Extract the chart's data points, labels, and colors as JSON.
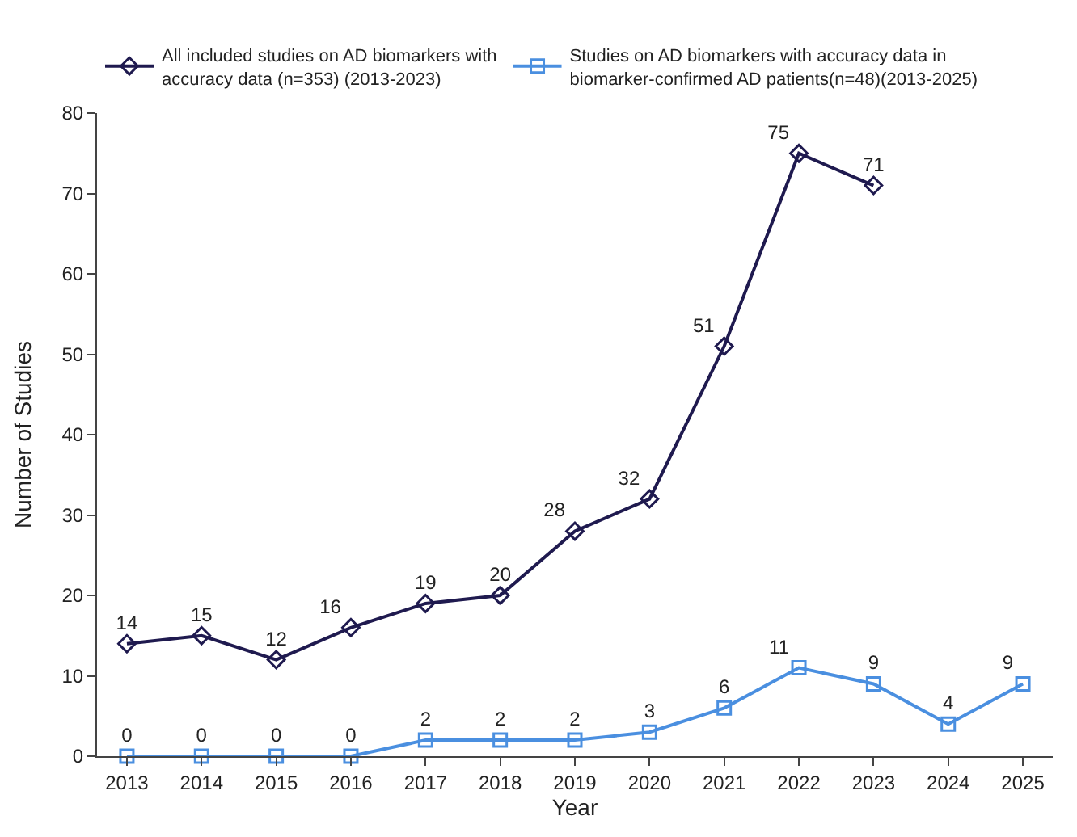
{
  "chart_data": {
    "type": "line",
    "xlabel": "Year",
    "ylabel": "Number of Studies",
    "categories": [
      "2013",
      "2014",
      "2015",
      "2016",
      "2017",
      "2018",
      "2019",
      "2020",
      "2021",
      "2022",
      "2023",
      "2024",
      "2025"
    ],
    "series": [
      {
        "name": "All included studies on AD biomarkers with accuracy data (n=353) (2013-2023)",
        "color": "#1f1a4f",
        "marker": "diamond",
        "values": [
          14,
          15,
          12,
          16,
          19,
          20,
          28,
          32,
          51,
          75,
          71,
          null,
          null
        ]
      },
      {
        "name": "Studies on AD biomarkers with accuracy data in biomarker-confirmed AD patients(n=48)(2013-2025)",
        "color": "#4a8fe0",
        "marker": "square",
        "values": [
          0,
          0,
          0,
          0,
          2,
          2,
          2,
          3,
          6,
          11,
          9,
          4,
          9
        ]
      }
    ],
    "ylim": [
      0,
      80
    ],
    "yticks": [
      0,
      10,
      20,
      30,
      40,
      50,
      60,
      70,
      80
    ],
    "legend": "top",
    "data_labels": true,
    "line_style": "solid"
  }
}
